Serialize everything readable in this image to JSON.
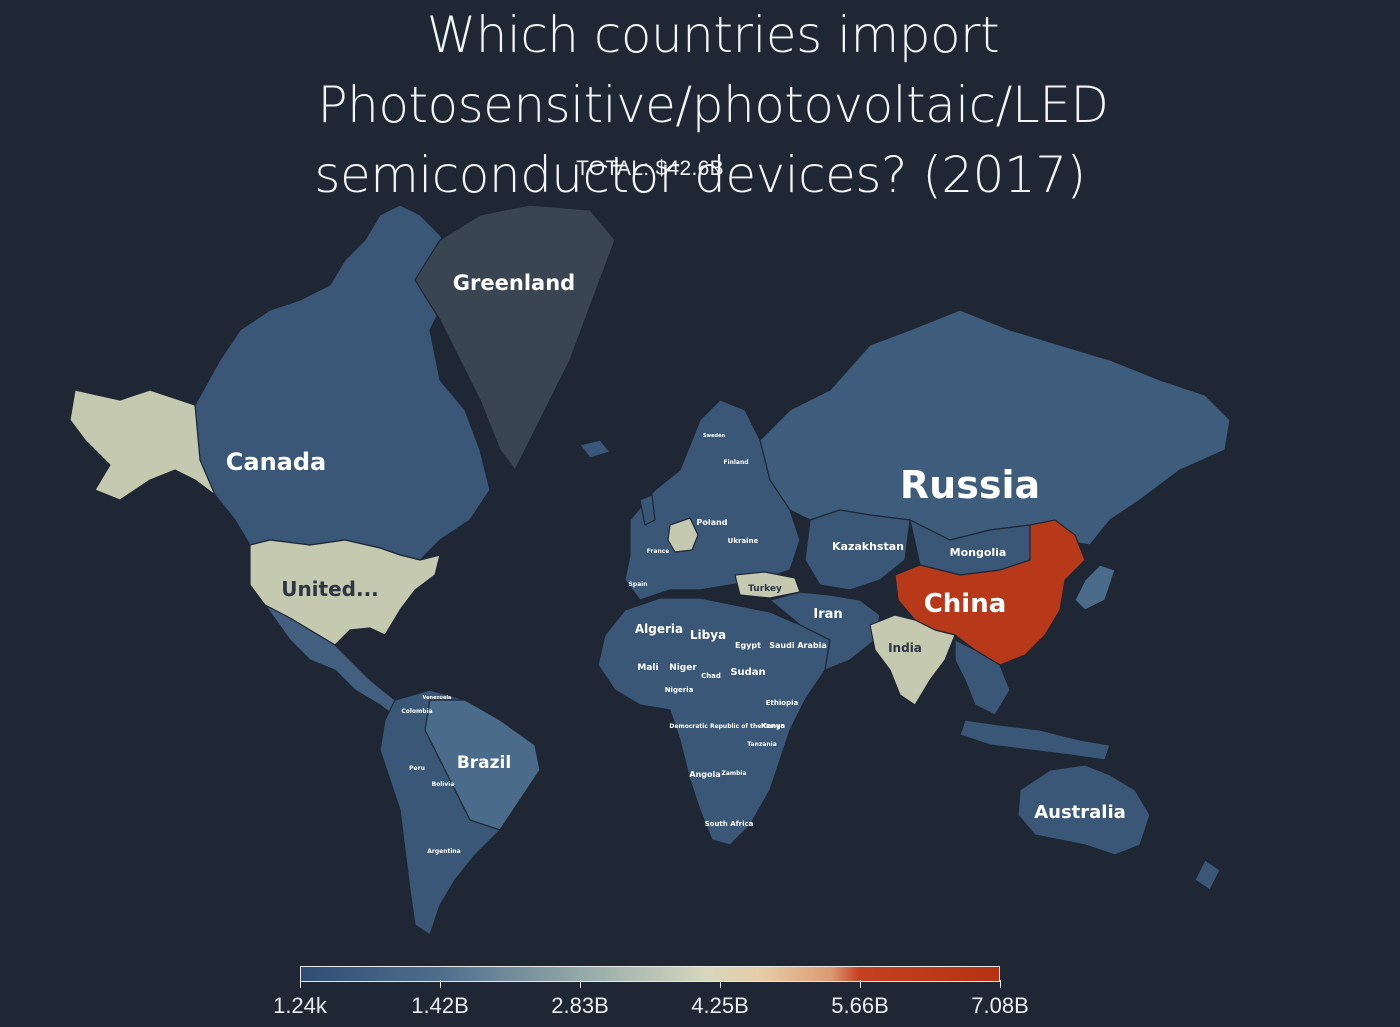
{
  "title_line1": "Which countries import Photosensitive/photovoltaic/LED",
  "title_line2": "semiconductor devices? (2017)",
  "total": "TOTAL: $42.6B",
  "colors": {
    "background": "#1e2733",
    "low": "#2f4d73",
    "mid": "#d6d7bf",
    "high": "#b63214",
    "greenland": "#3a4552"
  },
  "legend": {
    "ticks": [
      "1.24k",
      "1.42B",
      "2.83B",
      "4.25B",
      "5.66B",
      "7.08B"
    ]
  },
  "countries": {
    "russia": "Russia",
    "canada": "Canada",
    "greenland": "Greenland",
    "united_states": "United...",
    "brazil": "Brazil",
    "australia": "Australia",
    "china": "China",
    "india": "India",
    "kazakhstan": "Kazakhstan",
    "mongolia": "Mongolia",
    "iran": "Iran",
    "algeria": "Algeria",
    "libya": "Libya",
    "egypt": "Egypt",
    "saudi_arabia": "Saudi Arabia",
    "sudan": "Sudan",
    "mali": "Mali",
    "niger": "Niger",
    "chad": "Chad",
    "nigeria": "Nigeria",
    "ethiopia": "Ethiopia",
    "drc": "Democratic Republic of the Congo",
    "kenya": "Kenya",
    "tanzania": "Tanzania",
    "angola": "Angola",
    "zambia": "Zambia",
    "south_africa": "South Africa",
    "turkey": "Turkey",
    "poland": "Poland",
    "ukraine": "Ukraine",
    "france": "France",
    "spain": "Spain",
    "peru": "Peru",
    "bolivia": "Bolivia",
    "argentina": "Argentina",
    "colombia": "Colombia",
    "venezuela": "Venezuela",
    "sweden": "Sweden",
    "finland": "Finland"
  }
}
